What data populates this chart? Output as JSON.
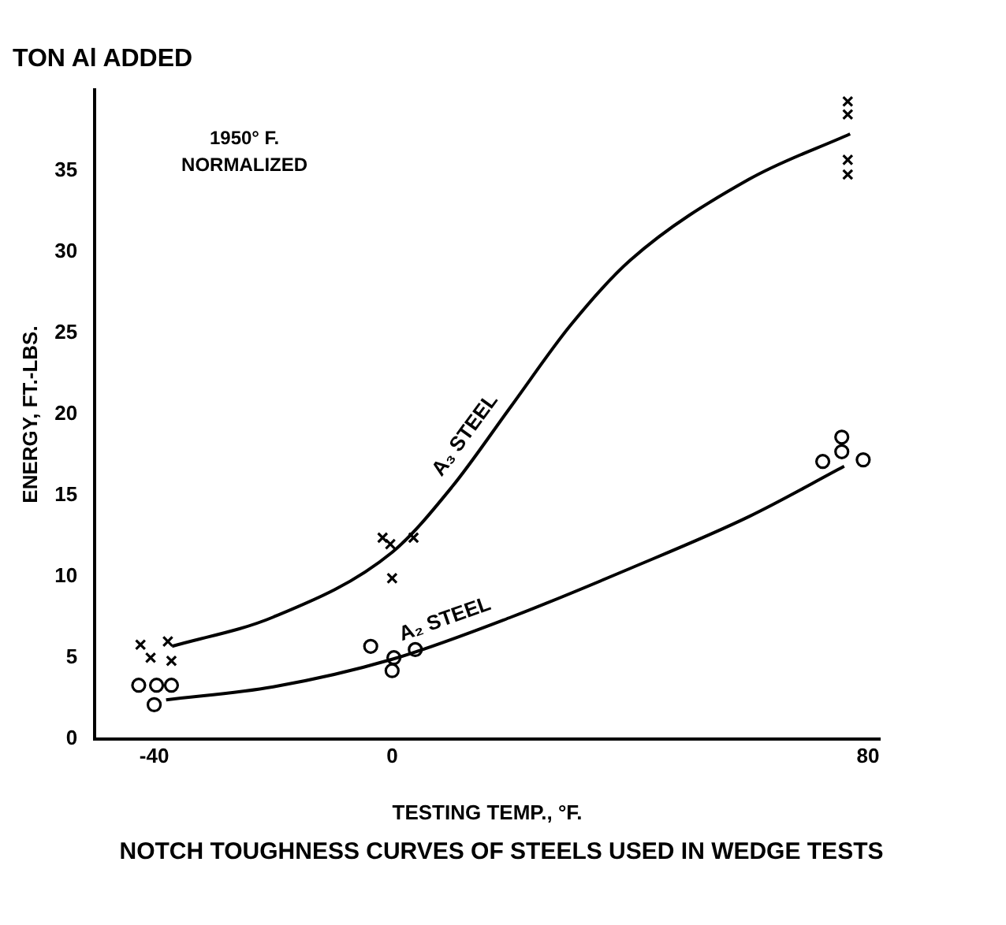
{
  "chart_data": {
    "type": "scatter",
    "title": "TON Al ADDED",
    "xlabel": "TESTING TEMP., °F.",
    "ylabel": "ENERGY, FT.-LBS.",
    "annotations": [
      "1950° F. NORMALIZED",
      "NOTCH TOUGHNESS CURVES OF STEELS USED IN WEDGE TESTS"
    ],
    "xlim": [
      -50,
      82
    ],
    "xticks": [
      -40,
      0,
      80
    ],
    "ylim": [
      0,
      40
    ],
    "yticks": [
      0,
      5,
      10,
      15,
      20,
      25,
      30,
      35
    ],
    "grid": false,
    "legend": false,
    "series": [
      {
        "marker": "cross",
        "color": "#000000",
        "x": [
          -42.3,
          -37.7,
          -40.6,
          -37.1,
          -1.6,
          -0.3,
          3.6,
          0,
          76.6,
          76.6,
          76.6,
          76.6
        ],
        "values": [
          5.8,
          6.0,
          5.0,
          4.8,
          12.4,
          12.0,
          12.4,
          9.9,
          39.3,
          38.5,
          35.7,
          34.8
        ]
      },
      {
        "marker": "circle",
        "color": "#000000",
        "x": [
          -42.6,
          -39.6,
          -37.1,
          -40,
          -3.6,
          0.3,
          0,
          3.9,
          75.6,
          75.6,
          72.4,
          79.2
        ],
        "values": [
          3.3,
          3.3,
          3.3,
          2.1,
          5.7,
          5.0,
          4.2,
          5.5,
          18.6,
          17.7,
          17.1,
          17.2
        ]
      },
      {
        "type": "line",
        "name": "A₃ STEEL",
        "marker": "none",
        "color": "#000000",
        "x": [
          -37,
          -20,
          0,
          10,
          20,
          30,
          40,
          60,
          77
        ],
        "values": [
          5.7,
          7.5,
          11.5,
          15.5,
          20.5,
          25.5,
          29.5,
          34.5,
          37.3
        ]
      },
      {
        "type": "line",
        "name": "A₂ STEEL",
        "marker": "none",
        "color": "#000000",
        "x": [
          -38,
          -20,
          0,
          20,
          40,
          60,
          76
        ],
        "values": [
          2.4,
          3.2,
          4.9,
          7.5,
          10.5,
          13.7,
          16.8
        ]
      }
    ]
  }
}
